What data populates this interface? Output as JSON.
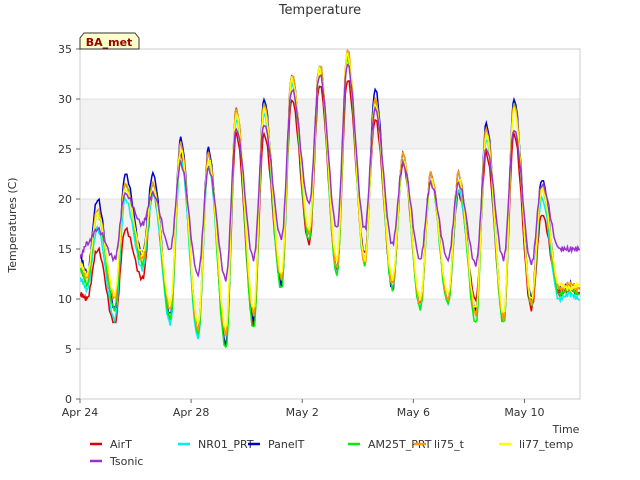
{
  "chart_data": {
    "type": "line",
    "title": "Temperature",
    "xlabel": "Time",
    "ylabel": "Temperatures (C)",
    "badge": "BA_met",
    "x_ticks": [
      "Apr 24",
      "Apr 28",
      "May 2",
      "May 6",
      "May 10"
    ],
    "y_ticks": [
      "0",
      "5",
      "10",
      "15",
      "20",
      "25",
      "30",
      "35"
    ],
    "xlim": [
      "2023-04-24",
      "2023-05-12"
    ],
    "ylim": [
      0,
      35
    ],
    "grid": "alternating horizontal bands",
    "legend_position": "bottom",
    "days": [
      "Apr 24",
      "Apr 25",
      "Apr 26",
      "Apr 27",
      "Apr 28",
      "Apr 29",
      "Apr 30",
      "May 1",
      "May 2",
      "May 3",
      "May 4",
      "May 5",
      "May 6",
      "May 7",
      "May 8",
      "May 9",
      "May 10",
      "May 11"
    ],
    "series": [
      {
        "name": "AirT",
        "color": "#dd0000",
        "daily_min": [
          10.0,
          7.5,
          12.0,
          8.0,
          6.5,
          5.5,
          7.5,
          11.5,
          15.5,
          13.0,
          14.5,
          11.5,
          9.5,
          10.0,
          10.0,
          8.0,
          9.0,
          10.5
        ],
        "daily_max": [
          15.0,
          17.0,
          20.5,
          24.5,
          24.5,
          26.5,
          26.5,
          30.0,
          31.5,
          32.0,
          28.0,
          23.5,
          22.5,
          20.5,
          24.5,
          26.5,
          18.5,
          11.0
        ]
      },
      {
        "name": "NR01_PRT",
        "color": "#00eeee",
        "daily_min": [
          11.0,
          8.0,
          13.0,
          7.5,
          6.0,
          5.5,
          8.0,
          11.0,
          16.0,
          12.5,
          13.5,
          11.0,
          9.0,
          9.5,
          8.5,
          7.5,
          9.5,
          10.0
        ],
        "daily_max": [
          17.0,
          20.0,
          20.5,
          24.0,
          23.5,
          28.0,
          28.5,
          31.5,
          33.0,
          34.5,
          29.5,
          24.0,
          22.0,
          21.0,
          26.0,
          29.5,
          20.0,
          10.5
        ]
      },
      {
        "name": "PanelT",
        "color": "#0000cc",
        "daily_min": [
          12.5,
          9.0,
          14.5,
          8.5,
          7.0,
          5.5,
          8.0,
          11.5,
          16.5,
          13.0,
          14.0,
          11.0,
          9.5,
          10.0,
          9.0,
          8.0,
          10.0,
          11.0
        ],
        "daily_max": [
          20.0,
          22.5,
          22.5,
          26.0,
          25.0,
          29.0,
          30.0,
          32.5,
          33.5,
          34.5,
          31.0,
          24.5,
          22.5,
          22.5,
          27.5,
          30.0,
          22.0,
          11.5
        ]
      },
      {
        "name": "AM25T_PRT",
        "color": "#00ee00",
        "daily_min": [
          11.5,
          9.0,
          13.5,
          8.0,
          6.5,
          5.0,
          7.0,
          11.0,
          16.0,
          12.5,
          13.5,
          11.0,
          9.0,
          9.5,
          7.5,
          7.5,
          9.5,
          10.5
        ],
        "daily_max": [
          18.5,
          21.5,
          21.5,
          25.0,
          24.0,
          28.5,
          29.5,
          32.0,
          33.0,
          34.0,
          30.0,
          24.0,
          22.0,
          22.0,
          26.5,
          29.5,
          21.0,
          11.0
        ]
      },
      {
        "name": "li75_t",
        "color": "#ff9900",
        "daily_min": [
          12.0,
          10.0,
          14.0,
          9.0,
          7.0,
          6.5,
          8.5,
          12.0,
          16.5,
          13.0,
          13.5,
          11.5,
          9.5,
          10.0,
          8.5,
          8.0,
          9.5,
          11.0
        ],
        "daily_max": [
          19.0,
          21.5,
          21.5,
          25.5,
          24.5,
          29.0,
          29.5,
          32.5,
          33.5,
          35.0,
          30.0,
          24.5,
          22.5,
          22.5,
          27.0,
          29.5,
          21.5,
          11.5
        ]
      },
      {
        "name": "li77_temp",
        "color": "#ffff00",
        "daily_min": [
          12.5,
          10.5,
          14.5,
          9.5,
          7.5,
          7.0,
          9.0,
          12.5,
          17.0,
          14.0,
          14.0,
          12.0,
          10.0,
          10.5,
          9.0,
          8.5,
          10.0,
          11.5
        ],
        "daily_max": [
          18.5,
          21.0,
          21.0,
          25.0,
          24.0,
          28.5,
          29.0,
          32.0,
          33.0,
          34.5,
          29.5,
          24.0,
          22.0,
          22.0,
          26.5,
          29.0,
          21.0,
          11.0
        ]
      },
      {
        "name": "Tsonic",
        "color": "#9933cc",
        "daily_min": [
          15.5,
          14.0,
          17.5,
          15.0,
          12.5,
          12.0,
          14.0,
          16.0,
          19.5,
          17.0,
          17.0,
          15.5,
          14.0,
          14.0,
          13.5,
          14.0,
          13.5,
          15.0
        ],
        "daily_max": [
          17.0,
          20.5,
          20.5,
          23.5,
          23.0,
          27.0,
          27.5,
          31.0,
          32.5,
          33.5,
          29.0,
          23.5,
          21.5,
          21.5,
          25.0,
          27.0,
          21.5,
          15.0
        ]
      }
    ]
  }
}
